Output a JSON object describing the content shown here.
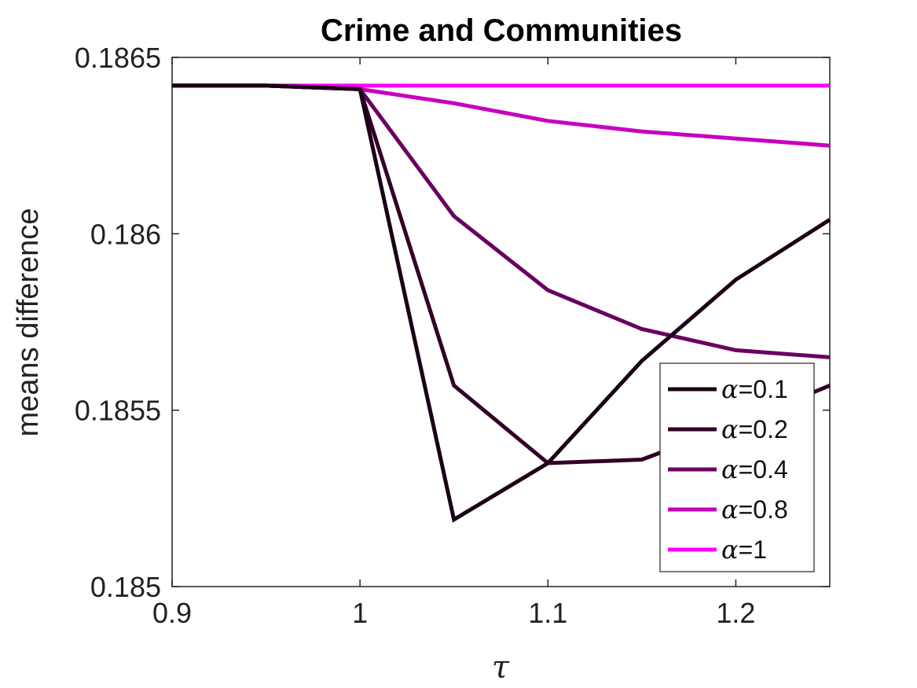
{
  "chart_data": {
    "type": "line",
    "title": "Crime and Communities",
    "xlabel": "τ",
    "ylabel": "means difference",
    "xlim": [
      0.9,
      1.25
    ],
    "ylim": [
      0.185,
      0.1865
    ],
    "xticks": [
      0.9,
      1,
      1.1,
      1.2
    ],
    "xtick_labels": [
      "0.9",
      "1",
      "1.1",
      "1.2"
    ],
    "yticks": [
      0.185,
      0.1855,
      0.186,
      0.1865
    ],
    "ytick_labels": [
      "0.185",
      "0.1855",
      "0.186",
      "0.1865"
    ],
    "grid": false,
    "legend_position": "bottom-right",
    "x": [
      0.9,
      0.95,
      1.0,
      1.05,
      1.1,
      1.15,
      1.2,
      1.25
    ],
    "series": [
      {
        "name": "α=0.1",
        "alpha_symbol": "α",
        "alpha_value": "=0.1",
        "color": "#1a0015",
        "values": [
          0.18642,
          0.18642,
          0.18641,
          0.18519,
          0.18535,
          0.18564,
          0.18587,
          0.18604
        ]
      },
      {
        "name": "α=0.2",
        "alpha_symbol": "α",
        "alpha_value": "=0.2",
        "color": "#330028",
        "values": [
          0.18642,
          0.18642,
          0.18641,
          0.18557,
          0.18535,
          0.18536,
          0.18546,
          0.18557
        ]
      },
      {
        "name": "α=0.4",
        "alpha_symbol": "α",
        "alpha_value": "=0.4",
        "color": "#6a0061",
        "values": [
          0.18642,
          0.18642,
          0.18641,
          0.18605,
          0.18584,
          0.18573,
          0.18567,
          0.18565
        ]
      },
      {
        "name": "α=0.8",
        "alpha_symbol": "α",
        "alpha_value": "=0.8",
        "color": "#c800bf",
        "values": [
          0.18642,
          0.18642,
          0.18641,
          0.18637,
          0.18632,
          0.18629,
          0.18627,
          0.18625
        ]
      },
      {
        "name": "α=1",
        "alpha_symbol": "α",
        "alpha_value": "=1",
        "color": "#ff00ff",
        "values": [
          0.18642,
          0.18642,
          0.18642,
          0.18642,
          0.18642,
          0.18642,
          0.18642,
          0.18642
        ]
      }
    ]
  }
}
